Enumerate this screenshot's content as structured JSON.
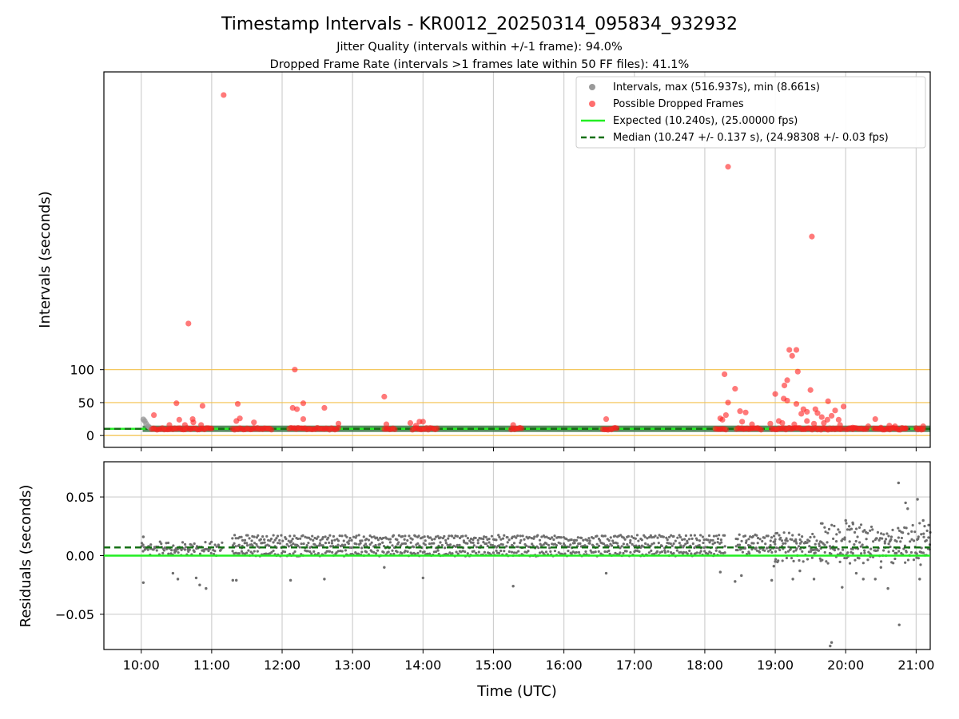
{
  "title": "Timestamp Intervals - KR0012_20250314_095834_932932",
  "subtitle_1": "Jitter Quality (intervals within +/-1 frame): 94.0%",
  "subtitle_2": "Dropped Frame Rate (intervals >1 frames late within 50 FF files): 41.1%",
  "colors": {
    "intervals": "#9a9a9a",
    "dropped": "#ff2020",
    "expected": "#22ee22",
    "median": "#157015",
    "threshold": "#f3c14a",
    "grid": "#cfcfcf",
    "residual": "#6e6e6e",
    "band": "#2f6f3a"
  },
  "legend": {
    "intervals": "Intervals, max (516.937s), min (8.661s)",
    "dropped": "Possible Dropped Frames",
    "expected": "Expected (10.240s), (25.00000 fps)",
    "median": "Median (10.247 +/- 0.137 s), (24.98308 +/- 0.03 fps)"
  },
  "chart_data": [
    {
      "type": "scatter",
      "panel": "top",
      "title": "Timestamp Intervals - KR0012_20250314_095834_932932",
      "xlabel": "Time (UTC)",
      "ylabel": "Intervals (seconds)",
      "xlim": [
        9.47,
        21.2
      ],
      "ylim": [
        -18,
        552
      ],
      "yticks": [
        0,
        50,
        100
      ],
      "ytick_labels": [
        "0",
        "50",
        "100"
      ],
      "expected": 10.24,
      "median": 10.247,
      "threshold_lines": [
        0,
        50,
        100
      ],
      "series": [
        {
          "name": "Intervals, max (516.937s), min (8.661s)",
          "baseline": 10.24,
          "points": [
            [
              10.03,
              24.5
            ],
            [
              10.05,
              22.0
            ],
            [
              10.07,
              18.0
            ],
            [
              10.1,
              14.0
            ],
            [
              10.12,
              12.0
            ]
          ]
        },
        {
          "name": "Possible Dropped Frames",
          "baseline": 10.24,
          "clusters": [
            [
              10.15,
              11.02
            ],
            [
              11.3,
              11.85
            ],
            [
              12.1,
              12.8
            ],
            [
              13.45,
              13.6
            ],
            [
              13.85,
              14.2
            ],
            [
              15.25,
              15.4
            ],
            [
              16.55,
              16.75
            ],
            [
              18.15,
              18.3
            ],
            [
              18.45,
              18.8
            ],
            [
              18.95,
              19.95
            ],
            [
              20.0,
              20.3
            ],
            [
              20.4,
              20.85
            ],
            [
              21.0,
              21.1
            ]
          ],
          "points": [
            [
              11.17,
              516.9
            ],
            [
              18.33,
              408
            ],
            [
              19.52,
              302
            ],
            [
              10.67,
              170
            ],
            [
              12.18,
              100
            ],
            [
              19.2,
              130
            ],
            [
              19.3,
              130
            ],
            [
              19.24,
              121
            ],
            [
              18.28,
              93
            ],
            [
              19.32,
              97
            ],
            [
              19.17,
              84
            ],
            [
              18.43,
              71
            ],
            [
              19.13,
              76
            ],
            [
              19.5,
              69
            ],
            [
              19.0,
              63
            ],
            [
              13.45,
              59
            ],
            [
              19.12,
              56
            ],
            [
              19.17,
              53
            ],
            [
              10.5,
              49
            ],
            [
              12.3,
              49
            ],
            [
              11.37,
              48
            ],
            [
              10.87,
              45
            ],
            [
              18.33,
              50
            ],
            [
              18.3,
              31
            ],
            [
              19.3,
              48
            ],
            [
              19.75,
              52
            ],
            [
              19.97,
              44
            ],
            [
              12.15,
              42
            ],
            [
              12.21,
              40
            ],
            [
              12.6,
              42
            ],
            [
              19.57,
              40
            ],
            [
              19.4,
              40
            ],
            [
              19.85,
              38
            ],
            [
              18.5,
              37
            ],
            [
              18.58,
              35
            ],
            [
              10.18,
              31
            ],
            [
              11.4,
              26
            ],
            [
              11.35,
              22
            ],
            [
              10.54,
              24
            ],
            [
              10.73,
              25
            ],
            [
              10.74,
              20
            ],
            [
              11.6,
              20
            ],
            [
              12.3,
              25
            ],
            [
              13.48,
              17
            ],
            [
              13.82,
              19
            ],
            [
              13.95,
              21
            ],
            [
              14.0,
              21
            ],
            [
              15.28,
              16
            ],
            [
              16.6,
              25
            ],
            [
              18.22,
              26
            ],
            [
              18.25,
              24
            ],
            [
              18.53,
              21
            ],
            [
              19.37,
              33
            ],
            [
              19.45,
              36
            ],
            [
              19.6,
              34
            ],
            [
              19.66,
              28
            ],
            [
              19.8,
              30
            ],
            [
              19.9,
              24
            ],
            [
              20.42,
              25
            ],
            [
              20.62,
              15
            ],
            [
              20.32,
              14
            ],
            [
              21.1,
              14
            ],
            [
              10.4,
              16
            ],
            [
              10.62,
              16
            ],
            [
              10.85,
              16
            ],
            [
              12.8,
              18
            ],
            [
              13.9,
              15
            ],
            [
              18.67,
              17
            ],
            [
              18.93,
              18
            ],
            [
              19.05,
              22
            ],
            [
              19.1,
              19
            ],
            [
              19.27,
              17
            ],
            [
              19.45,
              22
            ],
            [
              19.55,
              18
            ],
            [
              19.69,
              19
            ],
            [
              19.74,
              24
            ],
            [
              19.92,
              16
            ],
            [
              20.1,
              12
            ],
            [
              20.5,
              12
            ],
            [
              20.7,
              14
            ],
            [
              20.85,
              11
            ]
          ]
        }
      ]
    },
    {
      "type": "scatter",
      "panel": "bottom",
      "xlabel": "Time (UTC)",
      "ylabel": "Residuals (seconds)",
      "xlim": [
        9.47,
        21.2
      ],
      "ylim": [
        -0.08,
        0.08
      ],
      "yticks": [
        -0.05,
        0.0,
        0.05
      ],
      "ytick_labels": [
        "−0.05",
        "0.00",
        "0.05"
      ],
      "xticks": [
        10,
        11,
        12,
        13,
        14,
        15,
        16,
        17,
        18,
        19,
        20,
        21
      ],
      "xtick_labels": [
        "10:00",
        "11:00",
        "12:00",
        "13:00",
        "14:00",
        "15:00",
        "16:00",
        "17:00",
        "18:00",
        "19:00",
        "20:00",
        "21:00"
      ],
      "expected_residual": 0.0,
      "median_residual": 0.007,
      "bands": [
        {
          "from": 10.0,
          "to": 11.15,
          "levels": [
            0.004,
            0.008
          ],
          "spread": 0.004
        },
        {
          "from": 11.3,
          "to": 18.3,
          "levels": [
            0.002,
            0.009,
            0.015
          ],
          "spread": 0.0025
        },
        {
          "from": 18.45,
          "to": 19.0,
          "levels": [
            0.004,
            0.009,
            0.015
          ],
          "spread": 0.003
        },
        {
          "from": 19.0,
          "to": 19.65,
          "levels": [
            0.0,
            0.008,
            0.015
          ],
          "spread": 0.006
        },
        {
          "from": 19.65,
          "to": 21.2,
          "levels": [
            0.0,
            0.008,
            0.02
          ],
          "spread": 0.008
        }
      ],
      "outliers": [
        [
          10.03,
          -0.023
        ],
        [
          10.03,
          0.016
        ],
        [
          10.45,
          -0.015
        ],
        [
          10.52,
          -0.02
        ],
        [
          10.78,
          -0.019
        ],
        [
          10.83,
          -0.025
        ],
        [
          10.92,
          -0.028
        ],
        [
          11.3,
          -0.021
        ],
        [
          11.35,
          -0.021
        ],
        [
          12.12,
          -0.021
        ],
        [
          12.6,
          -0.02
        ],
        [
          13.45,
          -0.01
        ],
        [
          14.0,
          -0.019
        ],
        [
          15.28,
          -0.026
        ],
        [
          16.6,
          -0.015
        ],
        [
          18.22,
          -0.014
        ],
        [
          18.43,
          -0.022
        ],
        [
          18.52,
          -0.017
        ],
        [
          18.95,
          -0.021
        ],
        [
          18.98,
          -0.009
        ],
        [
          19.0,
          -0.005
        ],
        [
          19.25,
          -0.02
        ],
        [
          19.35,
          -0.013
        ],
        [
          19.55,
          -0.02
        ],
        [
          19.8,
          -0.074
        ],
        [
          19.78,
          -0.077
        ],
        [
          19.95,
          -0.027
        ],
        [
          20.0,
          0.03
        ],
        [
          20.05,
          0.025
        ],
        [
          20.1,
          0.028
        ],
        [
          20.15,
          -0.015
        ],
        [
          20.25,
          -0.02
        ],
        [
          20.42,
          -0.02
        ],
        [
          20.5,
          -0.01
        ],
        [
          20.6,
          -0.028
        ],
        [
          20.75,
          0.062
        ],
        [
          20.76,
          -0.059
        ],
        [
          20.85,
          0.045
        ],
        [
          20.88,
          0.04
        ],
        [
          21.02,
          0.048
        ],
        [
          21.05,
          -0.02
        ],
        [
          21.1,
          0.03
        ]
      ]
    }
  ]
}
